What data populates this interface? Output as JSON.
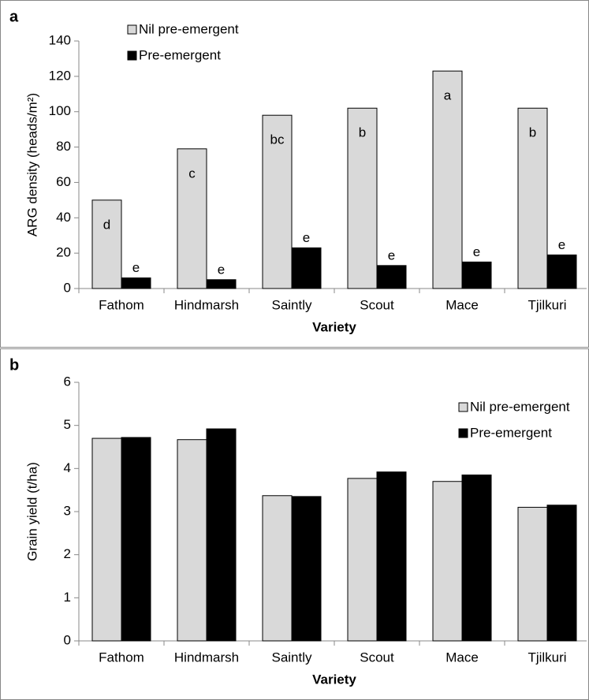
{
  "chart_data": [
    {
      "type": "bar",
      "label": "a",
      "x_label": "Variety",
      "y_label": "ARG density (heads/m²)",
      "categories": [
        "Fathom",
        "Hindmarsh",
        "Saintly",
        "Scout",
        "Mace",
        "Tjilkuri"
      ],
      "series": [
        {
          "name": "Nil pre-emergent",
          "color": "#d9d9d9",
          "values": [
            50,
            79,
            98,
            102,
            123,
            102
          ],
          "letters": [
            "d",
            "c",
            "bc",
            "b",
            "a",
            "b"
          ]
        },
        {
          "name": "Pre-emergent",
          "color": "#000000",
          "values": [
            6,
            5,
            23,
            13,
            15,
            19
          ],
          "letters": [
            "e",
            "e",
            "e",
            "e",
            "e",
            "e"
          ]
        }
      ],
      "ylim": [
        0,
        140
      ],
      "yticks": [
        0,
        20,
        40,
        60,
        80,
        100,
        120,
        140
      ],
      "legend": "upper left"
    },
    {
      "type": "bar",
      "label": "b",
      "x_label": "Variety",
      "y_label": "Grain yield (t/ha)",
      "categories": [
        "Fathom",
        "Hindmarsh",
        "Saintly",
        "Scout",
        "Mace",
        "Tjilkuri"
      ],
      "series": [
        {
          "name": "Nil pre-emergent",
          "color": "#d9d9d9",
          "values": [
            4.7,
            4.67,
            3.37,
            3.77,
            3.7,
            3.1
          ]
        },
        {
          "name": "Pre-emergent",
          "color": "#000000",
          "values": [
            4.72,
            4.92,
            3.35,
            3.92,
            3.85,
            3.15
          ]
        }
      ],
      "ylim": [
        0,
        6
      ],
      "yticks": [
        0,
        1,
        2,
        3,
        4,
        5,
        6
      ],
      "legend": "upper right"
    }
  ]
}
